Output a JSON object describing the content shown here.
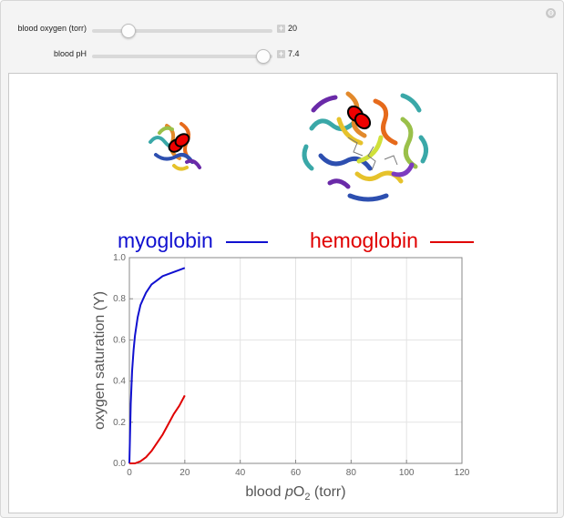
{
  "controls": [
    {
      "label": "blood oxygen (torr)",
      "value": "20",
      "fraction": 0.2
    },
    {
      "label": "blood pH",
      "value": "7.4",
      "fraction": 0.95
    }
  ],
  "reset_icon": "⊖",
  "molecules": [
    "myoglobin-structure",
    "hemoglobin-structure"
  ],
  "legend": [
    {
      "name": "myoglobin",
      "color": "#1010d0"
    },
    {
      "name": "hemoglobin",
      "color": "#e00000"
    }
  ],
  "chart_data": {
    "type": "line",
    "xlabel_pre": "blood ",
    "xlabel_italic": "p",
    "xlabel_main": "O",
    "xlabel_sub": "2",
    "xlabel_post": " (torr)",
    "ylabel": "oxygen saturation (Y)",
    "xlim": [
      0,
      120
    ],
    "ylim": [
      0,
      1
    ],
    "x_ticks": [
      "0",
      "20",
      "40",
      "60",
      "80",
      "100",
      "120"
    ],
    "y_ticks": [
      "0.0",
      "0.2",
      "0.4",
      "0.6",
      "0.8",
      "1.0"
    ],
    "grid": true,
    "series": [
      {
        "name": "myoglobin",
        "color": "#1010d0",
        "x": [
          0,
          0.5,
          1,
          1.5,
          2,
          3,
          4,
          5,
          6,
          8,
          10,
          12,
          14,
          16,
          18,
          20
        ],
        "y": [
          0,
          0.29,
          0.45,
          0.55,
          0.62,
          0.71,
          0.77,
          0.8,
          0.83,
          0.87,
          0.89,
          0.91,
          0.92,
          0.93,
          0.94,
          0.95
        ]
      },
      {
        "name": "hemoglobin",
        "color": "#e00000",
        "x": [
          0,
          2,
          4,
          6,
          8,
          10,
          12,
          14,
          16,
          18,
          20
        ],
        "y": [
          0,
          0.0,
          0.01,
          0.03,
          0.06,
          0.1,
          0.14,
          0.19,
          0.24,
          0.28,
          0.33
        ]
      }
    ]
  }
}
